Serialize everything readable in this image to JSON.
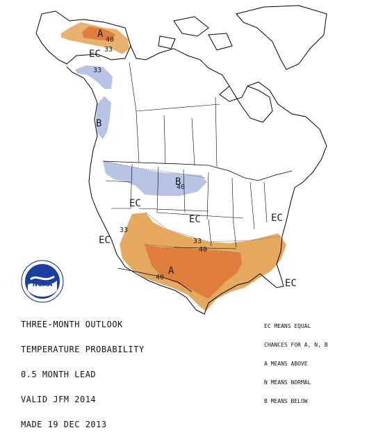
{
  "title_lines": [
    "THREE-MONTH OUTLOOK",
    "TEMPERATURE PROBABILITY",
    "0.5 MONTH LEAD",
    "VALID JFM 2014",
    "MADE 19 DEC 2013"
  ],
  "legend_lines": [
    "EC MEANS EQUAL",
    "CHANCES FOR A, N, B",
    "A MEANS ABOVE",
    "N MEANS NORMAL",
    "B MEANS BELOW"
  ],
  "logo_text": "NOAA",
  "colors": {
    "above_40": "#e07e3e",
    "above_33": "#e5a960",
    "below_33": "#b8c4e6",
    "coast": "#000000",
    "background": "#ffffff"
  },
  "regions": {
    "alaska_a": "A",
    "alaska_ec": "EC",
    "pacific_nw_b": "B",
    "north_plains_b": "B",
    "west_ec_1": "EC",
    "west_ec_2": "EC",
    "central_ec": "EC",
    "northeast_ec": "EC",
    "florida_ec": "EC",
    "south_a": "A"
  },
  "contours": {
    "alaska_40": "40",
    "alaska_33": "33",
    "bc_33": "33",
    "plains_40": "40",
    "sw_33": "33",
    "south_33": "33",
    "south_40": "40",
    "south_40b": "40"
  }
}
